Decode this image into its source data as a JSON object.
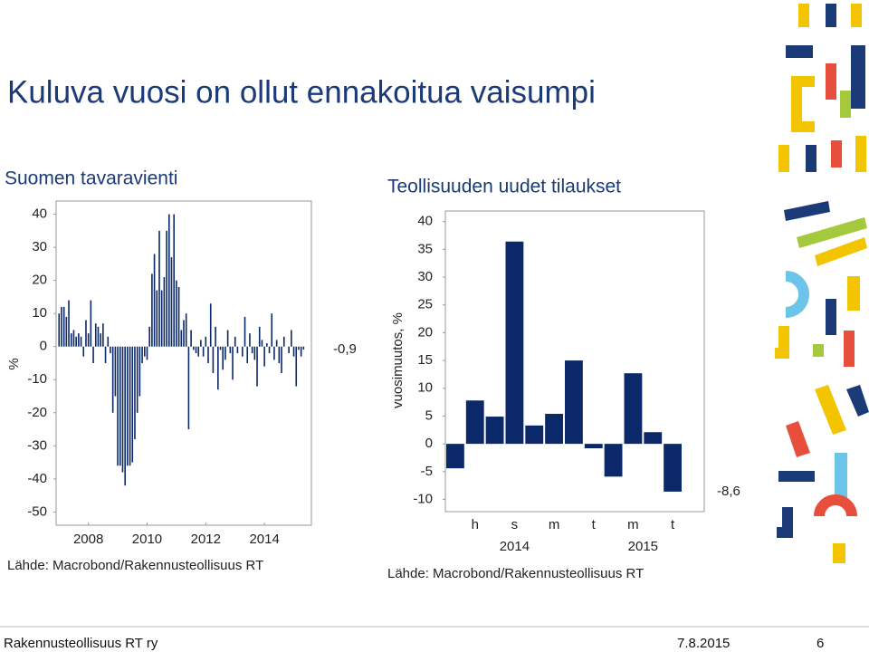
{
  "title": "Kuluva vuosi on ollut ennakoitua vaisumpi",
  "footer": {
    "organization": "Rakennusteollisuus RT ry",
    "date": "7.8.2015",
    "page": "6"
  },
  "chart_data": [
    {
      "type": "bar",
      "title": "Suomen tavaravienti",
      "ylabel": "%",
      "source": "Lähde: Macrobond/Rakennusteollisuus RT",
      "color": "#0b2868",
      "x": [
        2007,
        2007.083,
        2007.167,
        2007.25,
        2007.333,
        2007.417,
        2007.5,
        2007.583,
        2007.667,
        2007.75,
        2007.833,
        2007.917,
        2008,
        2008.083,
        2008.167,
        2008.25,
        2008.333,
        2008.417,
        2008.5,
        2008.583,
        2008.667,
        2008.75,
        2008.833,
        2008.917,
        2009,
        2009.083,
        2009.167,
        2009.25,
        2009.333,
        2009.417,
        2009.5,
        2009.583,
        2009.667,
        2009.75,
        2009.833,
        2009.917,
        2010,
        2010.083,
        2010.167,
        2010.25,
        2010.333,
        2010.417,
        2010.5,
        2010.583,
        2010.667,
        2010.75,
        2010.833,
        2010.917,
        2011,
        2011.083,
        2011.167,
        2011.25,
        2011.333,
        2011.417,
        2011.5,
        2011.583,
        2011.667,
        2011.75,
        2011.833,
        2011.917,
        2012,
        2012.083,
        2012.167,
        2012.25,
        2012.333,
        2012.417,
        2012.5,
        2012.583,
        2012.667,
        2012.75,
        2012.833,
        2012.917,
        2013,
        2013.083,
        2013.167,
        2013.25,
        2013.333,
        2013.417,
        2013.5,
        2013.583,
        2013.667,
        2013.75,
        2013.833,
        2013.917,
        2014,
        2014.083,
        2014.167,
        2014.25,
        2014.333,
        2014.417,
        2014.5,
        2014.583,
        2014.667,
        2014.75,
        2014.833,
        2014.917,
        2015,
        2015.083,
        2015.167,
        2015.25,
        2015.333
      ],
      "values": [
        10,
        12,
        12,
        9,
        14,
        4,
        5,
        3,
        4,
        3,
        -3,
        8,
        4,
        14,
        -5,
        7,
        6,
        4,
        7,
        -5,
        3,
        -2,
        -20,
        -15,
        -36,
        -36,
        -38,
        -42,
        -36,
        -36,
        -35,
        -28,
        -20,
        -15,
        -5,
        -3,
        -4,
        6,
        22,
        28,
        17,
        35,
        17,
        21,
        35,
        40,
        27,
        40,
        20,
        18,
        5,
        8,
        10,
        -25,
        5,
        -1,
        -2,
        -3,
        2,
        -3,
        3,
        -5,
        13,
        -8,
        6,
        -13,
        -1,
        -7,
        -4,
        5,
        -2,
        -10,
        3,
        -2,
        0,
        -3,
        9,
        -5,
        4,
        -2,
        -4,
        -12,
        6,
        2,
        -6,
        1,
        -2,
        10,
        -4,
        2,
        -5,
        -8,
        3,
        0,
        -2,
        5,
        -3,
        -12,
        -1,
        -3,
        -0.9
      ],
      "value_labels": [
        null,
        null,
        null,
        null,
        null,
        null,
        null,
        null,
        null,
        null,
        null,
        null,
        null,
        null,
        null,
        null,
        null,
        null,
        null,
        null,
        null,
        null,
        null,
        null,
        null,
        null,
        null,
        null,
        null,
        null,
        null,
        null,
        null,
        null,
        null,
        null,
        null,
        null,
        null,
        null,
        null,
        null,
        null,
        null,
        null,
        null,
        null,
        null,
        null,
        null,
        null,
        null,
        null,
        null,
        null,
        null,
        null,
        null,
        null,
        null,
        null,
        null,
        null,
        null,
        null,
        null,
        null,
        null,
        null,
        null,
        null,
        null,
        null,
        null,
        null,
        null,
        null,
        null,
        null,
        null,
        null,
        null,
        null,
        null,
        null,
        null,
        null,
        null,
        null,
        null,
        null,
        null,
        null,
        null,
        null,
        null,
        null,
        null,
        null,
        null,
        "-0,9"
      ],
      "xlim": [
        2006.9,
        2015.6
      ],
      "xticks": [
        2008,
        2010,
        2012,
        2014
      ],
      "ylim": [
        -54,
        44
      ],
      "yticks": [
        -50,
        -40,
        -30,
        -20,
        -10,
        0,
        10,
        20,
        30,
        40
      ]
    },
    {
      "type": "bar",
      "title": "Teollisuuden uudet tilaukset",
      "ylabel": "vuosimuutos, %",
      "source": "Lähde: Macrobond/Rakennusteollisuus RT",
      "color": "#0b2868",
      "categories": [
        null,
        "h",
        null,
        "s",
        null,
        "m",
        null,
        "t",
        null,
        "m",
        null,
        "t"
      ],
      "year_labels": [
        "2014",
        "2015"
      ],
      "values": [
        -4.4,
        7.8,
        4.9,
        36.4,
        3.3,
        5.4,
        15.0,
        -0.8,
        -5.9,
        12.7,
        2.1,
        -8.6
      ],
      "value_labels": [
        null,
        null,
        null,
        null,
        null,
        null,
        null,
        null,
        null,
        null,
        null,
        "-8,6"
      ],
      "ylim": [
        -12.2,
        41.9
      ],
      "yticks": [
        -10,
        -5,
        0,
        5,
        10,
        15,
        20,
        25,
        30,
        35,
        40
      ]
    }
  ]
}
